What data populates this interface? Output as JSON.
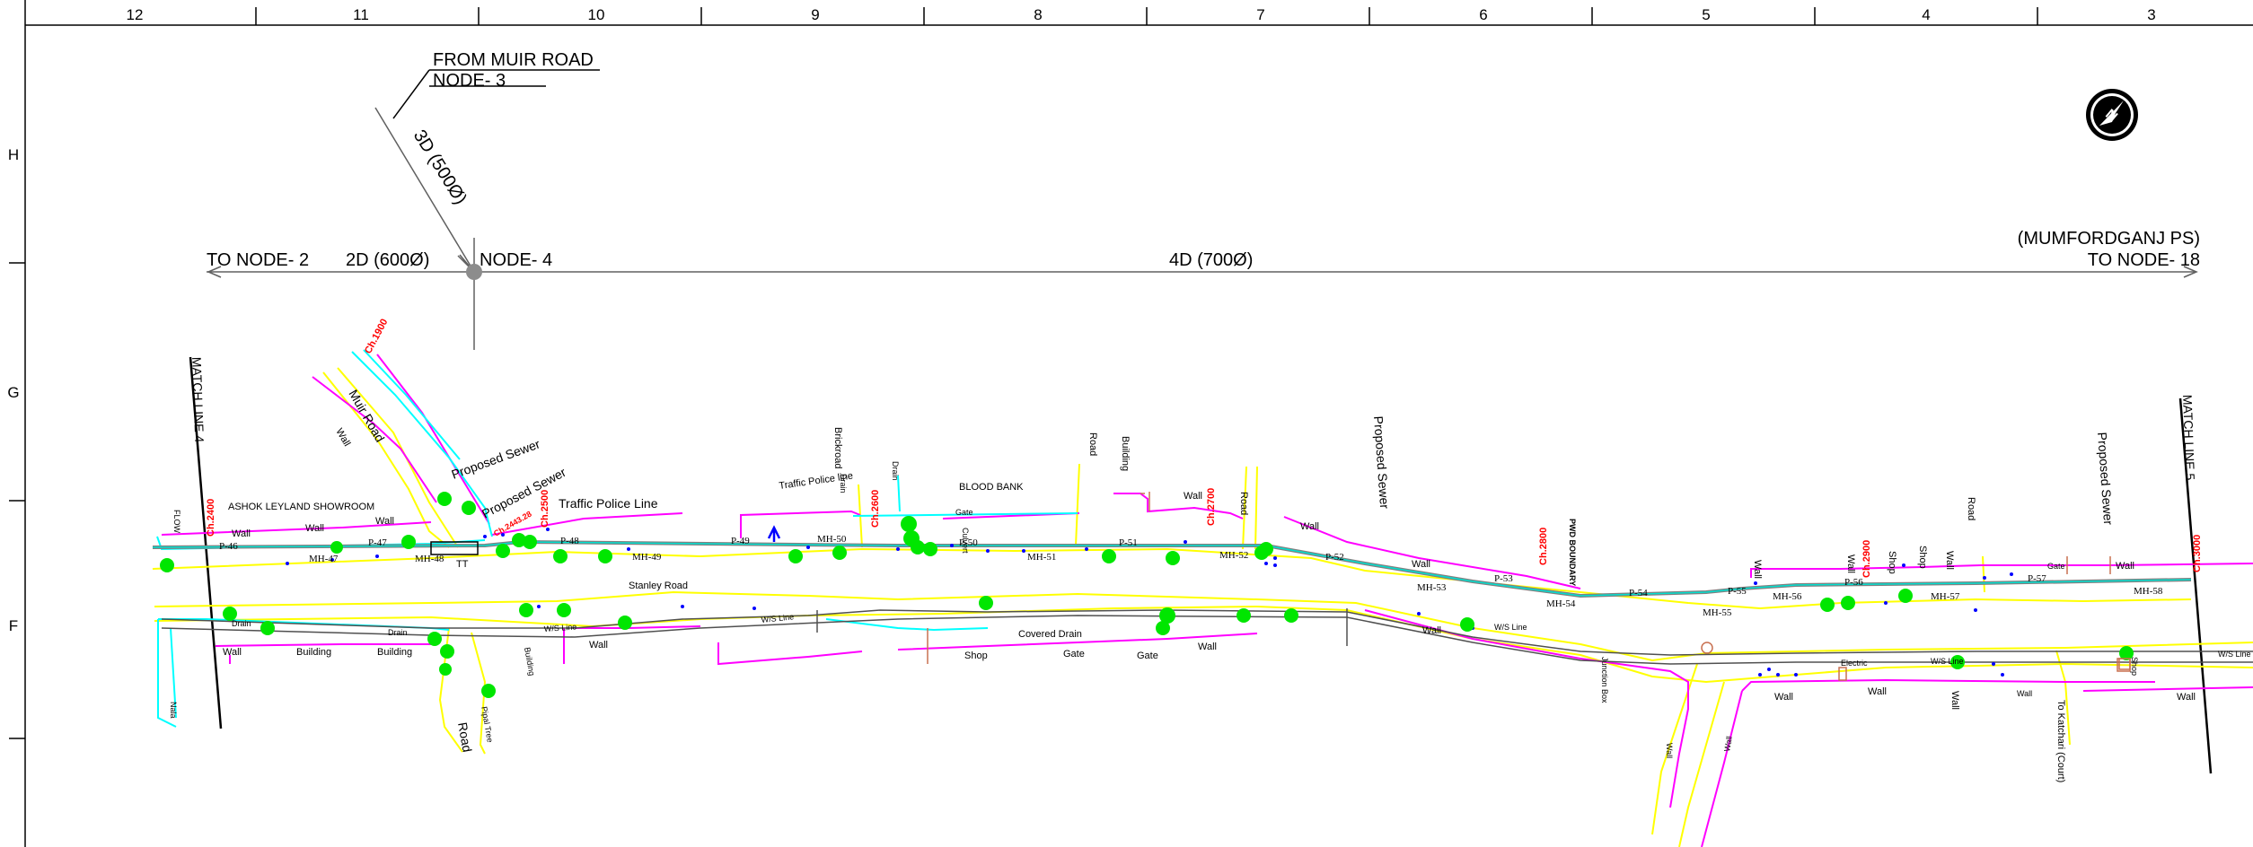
{
  "border": {
    "columns": [
      "12",
      "11",
      "10",
      "9",
      "8",
      "7",
      "6",
      "5",
      "4",
      "3"
    ],
    "rows": [
      "H",
      "G",
      "F"
    ]
  },
  "north_arrow": {
    "glyph": "N"
  },
  "header_lines": {
    "from_muir_road": "FROM MUIR ROAD",
    "node3": "NODE- 3",
    "pipe_3d": "3D (500Ø)",
    "to_node2": "TO NODE- 2",
    "pipe_2d": "2D (600Ø)",
    "node4": "NODE- 4",
    "pipe_4d": "4D  (700Ø)",
    "mumfordganj": "(MUMFORDGANJ PS)",
    "to_node18": "TO NODE- 18"
  },
  "match_lines": {
    "left": "MATCH LINE  4",
    "right": "MATCH LINE  5"
  },
  "chainages": {
    "ch1900": "Ch.1900",
    "ch2400": "Ch.2400",
    "ch2500": "Ch.2500",
    "ch2443": "Ch.2443.28",
    "ch2600": "Ch.2600",
    "ch2700": "Ch.2700",
    "ch2800": "Ch.2800",
    "ch2900": "Ch.2900",
    "ch3000": "Ch.3000"
  },
  "manholes": [
    "MH-47",
    "MH-48",
    "MH-49",
    "MH-50",
    "MH-51",
    "MH-52",
    "MH-53",
    "MH-54",
    "MH-55",
    "MH-56",
    "MH-57",
    "MH-58"
  ],
  "pipes": [
    "P-46",
    "P-47",
    "P-48",
    "P-49",
    "P-50",
    "P-51",
    "P-52",
    "P-53",
    "P-54",
    "P-55",
    "P-56",
    "P-57"
  ],
  "labels": {
    "ashok": "ASHOK LEYLAND SHOWROOM",
    "muir_road": "Muir Road",
    "proposed_sewer": "Proposed  Sewer",
    "traffic_police_line": "Traffic  Police Line",
    "traffic_police_line_small": "Traffic Police line",
    "blood_bank": "BLOOD BANK",
    "brickroad": "Brickroad",
    "drain": "Drain",
    "gate": "Gate",
    "road": "Road",
    "building": "Building",
    "wall": "Wall",
    "stanley_road": "Stanley Road",
    "covered_drain": "Covered Drain",
    "shop": "Shop",
    "junction_box": "Junction Box",
    "nala": "Nala",
    "to_katchari": "To  Katchari  (Court)",
    "flow": "FLOW",
    "culvert": "Culvert",
    "pwd_boundary": "PWD BOUNDARY",
    "tt": "TT",
    "pipal_tree": "Pipal Tree",
    "water_line": "W/S Line",
    "electric": "Electric",
    "building_sm": "Building"
  },
  "colors": {
    "road_edge": "#ffff00",
    "wall": "#ff00ff",
    "sewer": "#00ffff",
    "pipe_line": "#808080",
    "chainage": "#ff0000",
    "tree": "#00e600",
    "points": "#0000ff",
    "plot": "#c87050",
    "darkline": "#404040"
  }
}
